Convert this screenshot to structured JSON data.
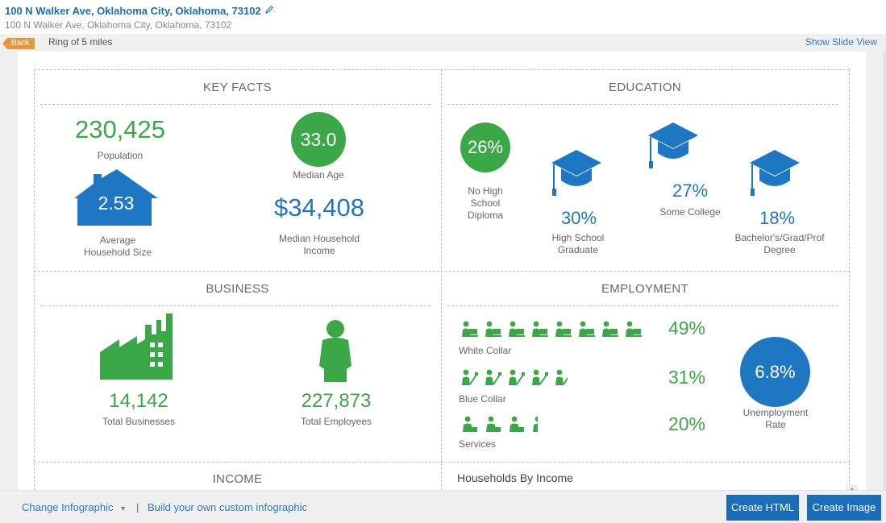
{
  "header": {
    "title": "100 N Walker Ave, Oklahoma City, Oklahoma, 73102",
    "subtitle": "100 N Walker Ave, Oklahoma City, Oklahoma, 73102"
  },
  "toolbar": {
    "back_label": "Back",
    "ring_label": "Ring of 5 miles",
    "slide_view_label": "Show Slide View"
  },
  "key_facts": {
    "title": "KEY FACTS",
    "population_value": "230,425",
    "population_label": "Population",
    "median_age_value": "33.0",
    "median_age_label": "Median Age",
    "household_size_value": "2.53",
    "household_size_label_1": "Average",
    "household_size_label_2": "Household Size",
    "income_value": "$34,408",
    "income_label_1": "Median Household",
    "income_label_2": "Income"
  },
  "education": {
    "title": "EDUCATION",
    "no_hs_value": "26%",
    "no_hs_label_1": "No High",
    "no_hs_label_2": "School",
    "no_hs_label_3": "Diploma",
    "hs_value": "30%",
    "hs_label_1": "High School",
    "hs_label_2": "Graduate",
    "college_value": "27%",
    "college_label": "Some College",
    "bach_value": "18%",
    "bach_label_1": "Bachelor's/Grad/Prof",
    "bach_label_2": "Degree"
  },
  "business": {
    "title": "BUSINESS",
    "businesses_value": "14,142",
    "businesses_label": "Total Businesses",
    "employees_value": "227,873",
    "employees_label": "Total Employees"
  },
  "employment": {
    "title": "EMPLOYMENT",
    "white_collar_value": "49%",
    "white_collar_label": "White Collar",
    "blue_collar_value": "31%",
    "blue_collar_label": "Blue Collar",
    "services_value": "20%",
    "services_label": "Services",
    "unemployment_value": "6.8%",
    "unemployment_label_1": "Unemployment",
    "unemployment_label_2": "Rate"
  },
  "income": {
    "title": "INCOME"
  },
  "households": {
    "title": "Households By Income"
  },
  "footer": {
    "change_label": "Change Infographic",
    "separator": "|",
    "build_label": "Build your own custom infographic",
    "create_html_label": "Create HTML",
    "create_image_label": "Create Image"
  },
  "colors": {
    "green": "#3aa846",
    "blue": "#1d77c2",
    "accent_orange": "#e8963c"
  }
}
